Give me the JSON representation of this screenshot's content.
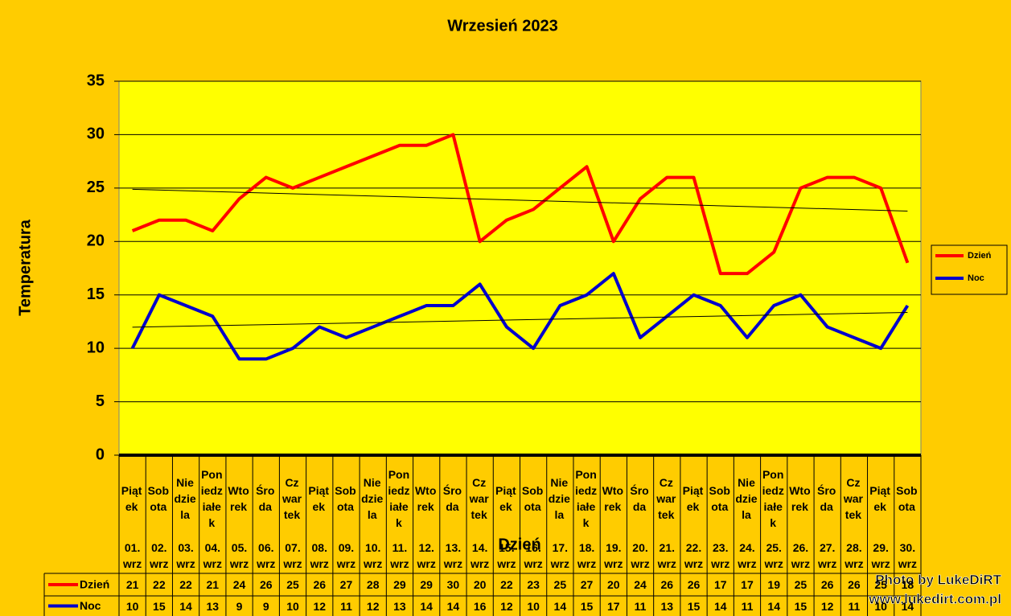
{
  "chart_data": {
    "type": "line",
    "title": "Wrzesień 2023",
    "y_label": "Temperatura",
    "x_label": "Dzień",
    "weekdays": [
      "Piątek",
      "Sobota",
      "Niedziela",
      "Poniedziałek",
      "Wtorek",
      "Środa",
      "Czwartek",
      "Piątek",
      "Sobota",
      "Niedziela",
      "Poniedziałek",
      "Wtorek",
      "Środa",
      "Czwartek",
      "Piątek",
      "Sobota",
      "Niedziela",
      "Poniedziałek",
      "Wtorek",
      "Środa",
      "Czwartek",
      "Piątek",
      "Sobota",
      "Niedziela",
      "Poniedziałek",
      "Wtorek",
      "Środa",
      "Czwartek",
      "Piątek",
      "Sobota"
    ],
    "categories": [
      "01. wrz",
      "02. wrz",
      "03. wrz",
      "04. wrz",
      "05. wrz",
      "06. wrz",
      "07. wrz",
      "08. wrz",
      "09. wrz",
      "10. wrz",
      "11. wrz",
      "12. wrz",
      "13. wrz",
      "14. wrz",
      "15. wrz",
      "16. wrz",
      "17. wrz",
      "18. wrz",
      "19. wrz",
      "20. wrz",
      "21. wrz",
      "22. wrz",
      "23. wrz",
      "24. wrz",
      "25. wrz",
      "26. wrz",
      "27. wrz",
      "28. wrz",
      "29. wrz",
      "30. wrz"
    ],
    "series": [
      {
        "name": "Dzień",
        "color": "#FF0000",
        "values": [
          21,
          22,
          22,
          21,
          24,
          26,
          25,
          26,
          27,
          28,
          29,
          29,
          30,
          20,
          22,
          23,
          25,
          27,
          20,
          24,
          26,
          26,
          17,
          17,
          19,
          25,
          26,
          26,
          25,
          18
        ]
      },
      {
        "name": "Noc",
        "color": "#0000CC",
        "values": [
          10,
          15,
          14,
          13,
          9,
          9,
          10,
          12,
          11,
          12,
          13,
          14,
          14,
          16,
          12,
          10,
          14,
          15,
          17,
          11,
          13,
          15,
          14,
          11,
          14,
          15,
          12,
          11,
          10,
          14
        ]
      }
    ],
    "ylim": [
      0,
      35
    ],
    "yticks": [
      0,
      5,
      10,
      15,
      20,
      25,
      30,
      35
    ],
    "grid": true,
    "trendline": true,
    "legend": "right",
    "credits": [
      "Photo by LukeDiRT",
      "www.lukedirt.com.pl"
    ]
  }
}
